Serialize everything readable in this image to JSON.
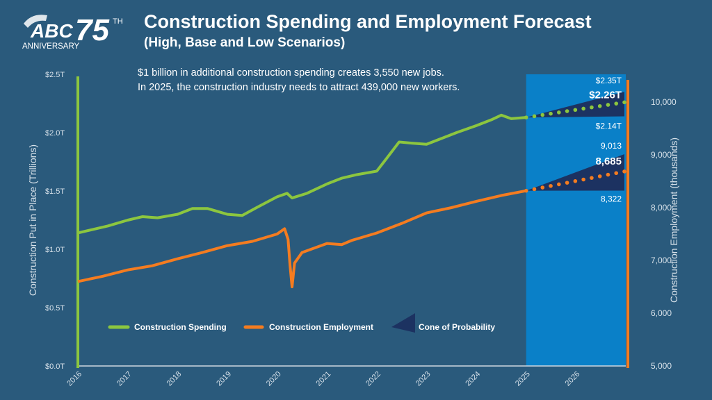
{
  "logo": {
    "text": "ABC",
    "number": "75",
    "suffix": "TH",
    "sub": "ANNIVERSARY"
  },
  "header": {
    "title": "Construction Spending and Employment Forecast",
    "subtitle": "(High, Base and Low Scenarios)",
    "note_line1": "$1 billion in additional construction spending creates 3,550 new jobs.",
    "note_line2": "In 2025, the construction industry needs to attract 439,000 new workers."
  },
  "colors": {
    "background": "#2a5a7c",
    "forecast_band": "#0a80c8",
    "spending": "#8cc63f",
    "employment": "#f47c20",
    "cone": "#1c3261"
  },
  "chart_data": {
    "type": "line",
    "xlim": [
      2016,
      2027
    ],
    "x_ticks": [
      "2016",
      "2017",
      "2018",
      "2019",
      "2020",
      "2021",
      "2022",
      "2023",
      "2024",
      "2025",
      "2026"
    ],
    "forecast_start": 2025,
    "y_left": {
      "label": "Construction Put in Place (Trillions)",
      "range": [
        0,
        2.5
      ],
      "ticks": [
        "$0.0T",
        "$0.5T",
        "$1.0T",
        "$1.5T",
        "$2.0T",
        "$2.5T"
      ]
    },
    "y_right": {
      "label": "Construction Employment (thousands)",
      "range": [
        5000,
        10500
      ],
      "ticks": [
        "5,000",
        "6,000",
        "7,000",
        "8,000",
        "9,000",
        "10,000"
      ]
    },
    "legend": {
      "spending": "Construction Spending",
      "employment": "Construction Employment",
      "cone": "Cone of Probability",
      "placement": "bottom"
    },
    "series": [
      {
        "name": "Construction Spending",
        "axis": "left",
        "points": [
          [
            2016,
            1.14
          ],
          [
            2016.3,
            1.17
          ],
          [
            2016.6,
            1.2
          ],
          [
            2017,
            1.25
          ],
          [
            2017.3,
            1.28
          ],
          [
            2017.6,
            1.27
          ],
          [
            2018,
            1.3
          ],
          [
            2018.3,
            1.35
          ],
          [
            2018.6,
            1.35
          ],
          [
            2019,
            1.3
          ],
          [
            2019.3,
            1.29
          ],
          [
            2019.6,
            1.36
          ],
          [
            2020,
            1.45
          ],
          [
            2020.2,
            1.48
          ],
          [
            2020.3,
            1.44
          ],
          [
            2020.6,
            1.48
          ],
          [
            2021,
            1.56
          ],
          [
            2021.3,
            1.61
          ],
          [
            2021.6,
            1.64
          ],
          [
            2022,
            1.67
          ],
          [
            2022.2,
            1.78
          ],
          [
            2022.45,
            1.92
          ],
          [
            2022.7,
            1.91
          ],
          [
            2023,
            1.9
          ],
          [
            2023.3,
            1.95
          ],
          [
            2023.6,
            2.0
          ],
          [
            2024,
            2.06
          ],
          [
            2024.3,
            2.11
          ],
          [
            2024.5,
            2.15
          ],
          [
            2024.7,
            2.12
          ],
          [
            2025,
            2.13
          ]
        ],
        "forecast": {
          "base": 2.26,
          "high": 2.35,
          "low": 2.14,
          "labels": {
            "base": "$2.26T",
            "high": "$2.35T",
            "low": "$2.14T"
          }
        }
      },
      {
        "name": "Construction Employment",
        "axis": "right",
        "points": [
          [
            2016,
            6600
          ],
          [
            2016.5,
            6700
          ],
          [
            2017,
            6820
          ],
          [
            2017.5,
            6900
          ],
          [
            2018,
            7030
          ],
          [
            2018.5,
            7150
          ],
          [
            2019,
            7280
          ],
          [
            2019.5,
            7360
          ],
          [
            2020,
            7500
          ],
          [
            2020.15,
            7600
          ],
          [
            2020.22,
            7400
          ],
          [
            2020.26,
            6900
          ],
          [
            2020.3,
            6500
          ],
          [
            2020.35,
            6950
          ],
          [
            2020.5,
            7150
          ],
          [
            2021,
            7320
          ],
          [
            2021.3,
            7300
          ],
          [
            2021.5,
            7380
          ],
          [
            2022,
            7520
          ],
          [
            2022.5,
            7700
          ],
          [
            2023,
            7900
          ],
          [
            2023.5,
            8000
          ],
          [
            2024,
            8120
          ],
          [
            2024.5,
            8230
          ],
          [
            2025,
            8320
          ]
        ],
        "forecast": {
          "base": 8685,
          "high": 9013,
          "low": 8322,
          "labels": {
            "base": "8,685",
            "high": "9,013",
            "low": "8,322"
          }
        }
      }
    ]
  }
}
